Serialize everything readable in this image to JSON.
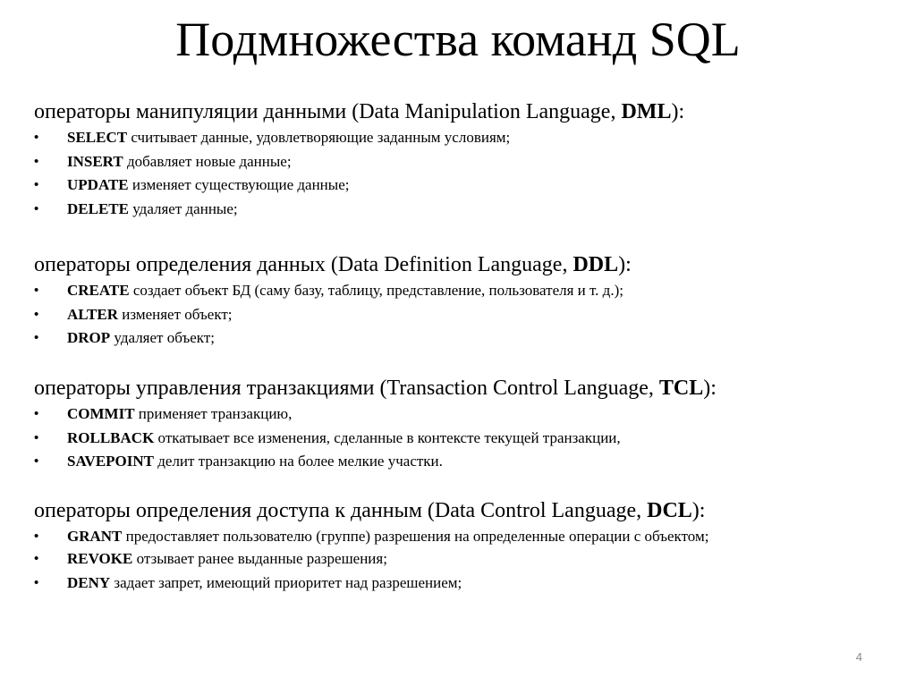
{
  "title": "Подмножества команд SQL",
  "sections": [
    {
      "heading_prefix": "операторы манипуляции данными (Data Manipulation Language, ",
      "heading_abbr": "DML",
      "heading_suffix": "):",
      "items": [
        {
          "bullet": "•",
          "keyword": "SELECT",
          "text": " считывает данные, удовлетворяющие заданным условиям;"
        },
        {
          "bullet": "•",
          "keyword": "INSERT",
          "text": " добавляет новые данные;"
        },
        {
          "bullet": "•",
          "keyword": "UPDATE",
          "text": " изменяет существующие данные;"
        },
        {
          "bullet": "•",
          "keyword": "DELETE",
          "text": " удаляет данные;"
        }
      ]
    },
    {
      "heading_prefix": "операторы определения данных (Data Definition Language, ",
      "heading_abbr": "DDL",
      "heading_suffix": "):",
      "items": [
        {
          "bullet": "•",
          "keyword": "CREATE",
          "text": " создает объект БД (саму базу, таблицу, представление, пользователя и т. д.);"
        },
        {
          "bullet": "•",
          "keyword": "ALTER",
          "text": " изменяет объект;"
        },
        {
          "bullet": "•",
          "keyword": "DROP",
          "text": " удаляет объект;"
        }
      ]
    },
    {
      "heading_prefix": "операторы управления транзакциями (Transaction Control Language, ",
      "heading_abbr": "TCL",
      "heading_suffix": "):",
      "items": [
        {
          "bullet": "•",
          "keyword": "COMMIT",
          "text": " применяет транзакцию,"
        },
        {
          "bullet": "•",
          "keyword": "ROLLBACK",
          "text": " откатывает все изменения, сделанные в контексте текущей транзакции,"
        },
        {
          "bullet": "•",
          "keyword": "SAVEPOINT",
          "text": " делит транзакцию на более мелкие участки."
        }
      ]
    },
    {
      "heading_prefix": "операторы определения доступа к данным (Data Control Language, ",
      "heading_abbr": "DCL",
      "heading_suffix": "):",
      "items": [
        {
          "bullet": "•",
          "keyword": "GRANT",
          "text": " предоставляет пользователю (группе) разрешения на определенные операции с объектом;"
        },
        {
          "bullet": "•",
          "keyword": "REVOKE",
          "text": " отзывает ранее выданные разрешения;"
        },
        {
          "bullet": "•",
          "keyword": "DENY",
          "text": " задает запрет, имеющий приоритет над разрешением;"
        }
      ]
    }
  ],
  "page_number": "4"
}
